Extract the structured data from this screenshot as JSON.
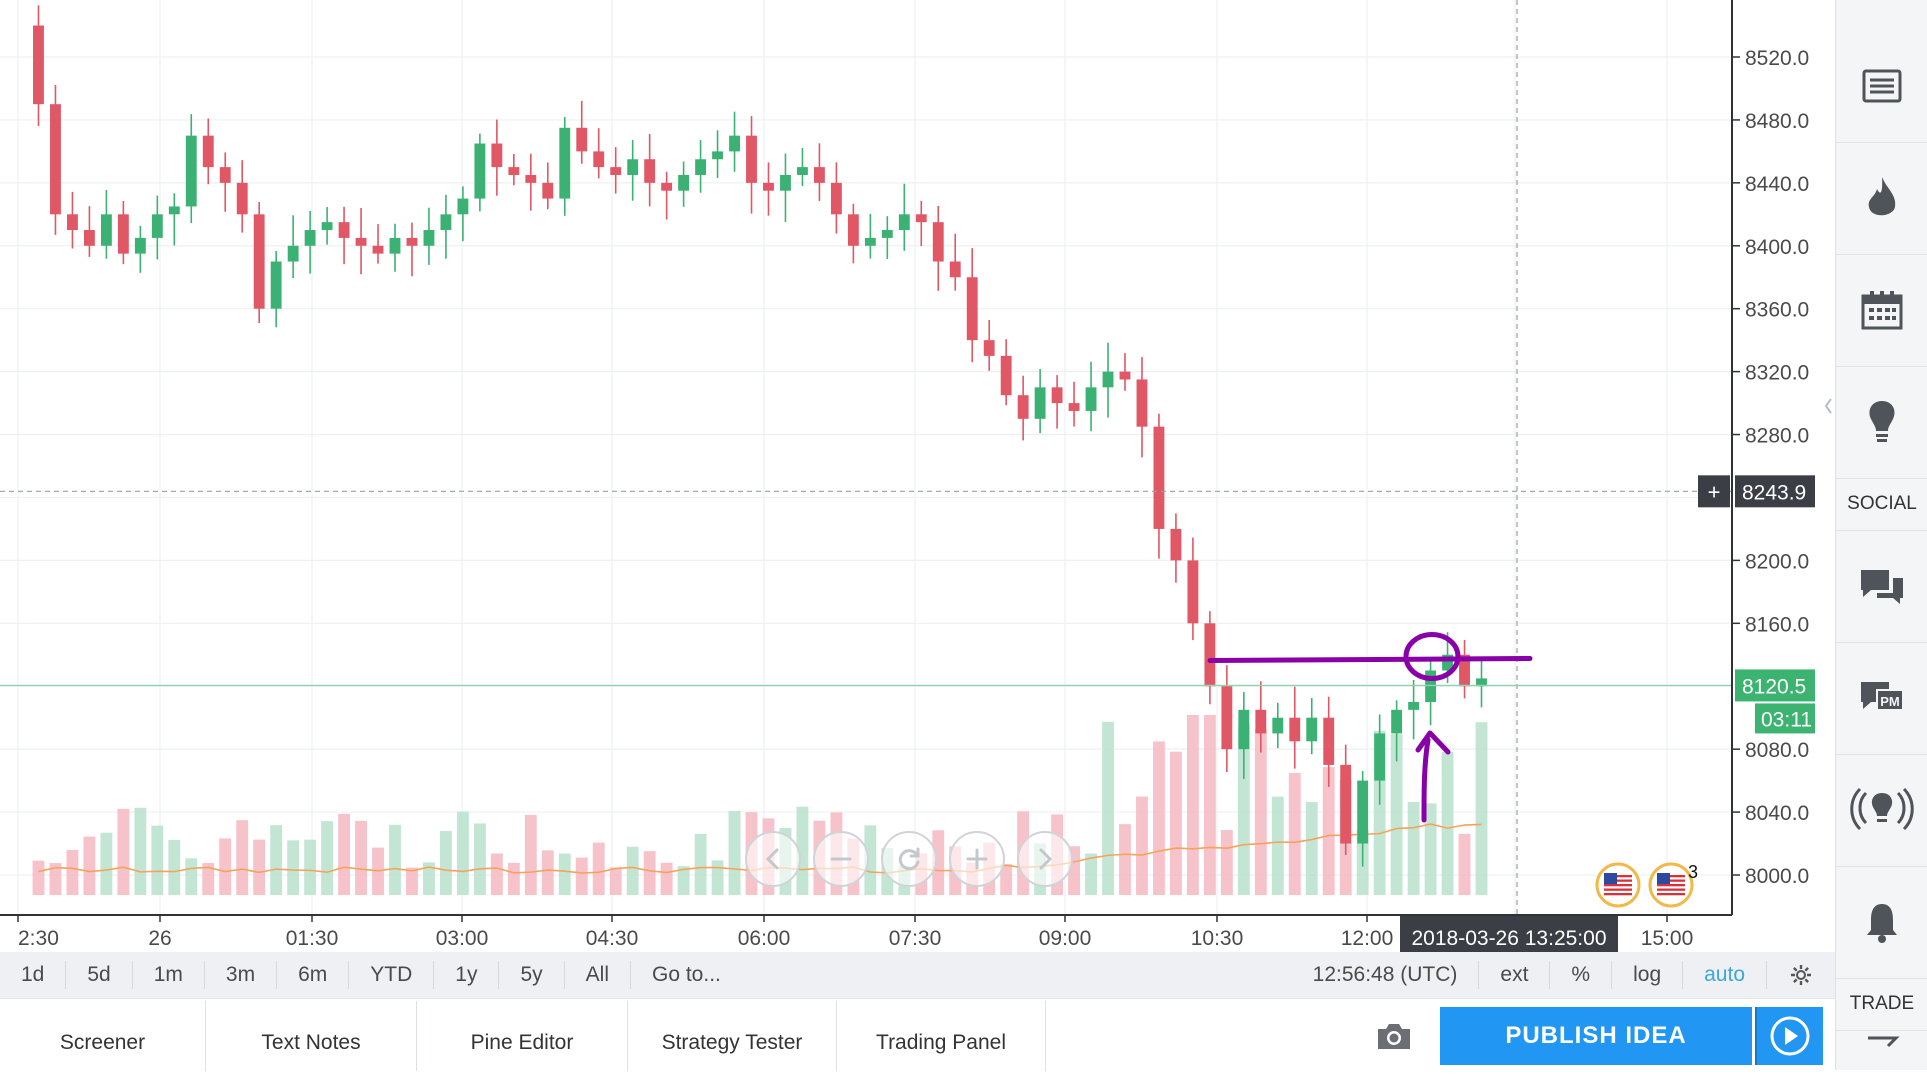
{
  "price_axis": {
    "ticks": [
      "8520.0",
      "8480.0",
      "8440.0",
      "8400.0",
      "8360.0",
      "8320.0",
      "8280.0",
      "8200.0",
      "8160.0",
      "8080.0",
      "8040.0",
      "8000.0"
    ],
    "tick_values": [
      8520,
      8480,
      8440,
      8400,
      8360,
      8320,
      8280,
      8200,
      8160,
      8080,
      8040,
      8000
    ],
    "crosshair_label": "8243.9",
    "crosshair_value": 8243.9,
    "current_price_label": "8120.5",
    "current_price_value": 8120.5,
    "countdown_label": "03:11",
    "crosshair_plus": "+"
  },
  "time_axis": {
    "labels": [
      "2:30",
      "26",
      "01:30",
      "03:00",
      "04:30",
      "06:00",
      "07:30",
      "09:00",
      "10:30",
      "12:00",
      "15:00"
    ],
    "crosshair_time": "2018-03-26 13:25:00"
  },
  "range_bar": {
    "items": [
      "1d",
      "5d",
      "1m",
      "3m",
      "6m",
      "YTD",
      "1y",
      "5y",
      "All",
      "Go to..."
    ],
    "clock": "12:56:48 (UTC)",
    "options": [
      "ext",
      "%",
      "log",
      "auto"
    ]
  },
  "bottom_tabs": [
    "Screener",
    "Text Notes",
    "Pine Editor",
    "Strategy Tester",
    "Trading Panel"
  ],
  "publish_label": "PUBLISH IDEA",
  "sidebar": {
    "social_label": "SOCIAL",
    "trade_label": "TRADE",
    "icons": [
      "watchlist-icon",
      "hotlist-icon",
      "calendar-icon",
      "ideas-icon",
      "chat-icon",
      "private-messages-icon",
      "streams-icon",
      "alerts-icon"
    ]
  },
  "events": {
    "badge_count": "3"
  },
  "zoom_controls": [
    "scroll-left-icon",
    "zoom-out-icon",
    "reset-icon",
    "zoom-in-icon",
    "scroll-right-icon"
  ],
  "colors": {
    "up": "#26a69a",
    "down": "#e0475f",
    "up_candle": "#3bb273",
    "down_candle": "#e05765",
    "annotation": "#8a00a8",
    "current_price": "#3cb371",
    "publish": "#2196f3",
    "ma_line": "#f5a35c"
  },
  "chart_data": {
    "type": "candlestick",
    "ylim": [
      7970,
      8550
    ],
    "y_ticks": [
      8000,
      8040,
      8080,
      8120,
      8160,
      8200,
      8240,
      8280,
      8320,
      8360,
      8400,
      8440,
      8480,
      8520
    ],
    "ohlc_close_approx": [
      8490,
      8420,
      8410,
      8400,
      8420,
      8395,
      8405,
      8420,
      8425,
      8470,
      8450,
      8440,
      8420,
      8360,
      8390,
      8400,
      8410,
      8415,
      8405,
      8400,
      8395,
      8405,
      8400,
      8410,
      8420,
      8430,
      8465,
      8450,
      8445,
      8440,
      8430,
      8475,
      8460,
      8450,
      8445,
      8455,
      8440,
      8435,
      8445,
      8455,
      8460,
      8470,
      8440,
      8435,
      8445,
      8450,
      8440,
      8420,
      8400,
      8405,
      8410,
      8420,
      8415,
      8390,
      8380,
      8340,
      8330,
      8305,
      8290,
      8310,
      8300,
      8295,
      8310,
      8320,
      8315,
      8285,
      8220,
      8200,
      8160,
      8120,
      8080,
      8105,
      8090,
      8100,
      8085,
      8100,
      8070,
      8020,
      8060,
      8090,
      8105,
      8110,
      8130,
      8140,
      8120,
      8125
    ],
    "annotation": {
      "horizontal_line_price": 8137,
      "circle_center_price": 8137
    },
    "grid": true
  }
}
